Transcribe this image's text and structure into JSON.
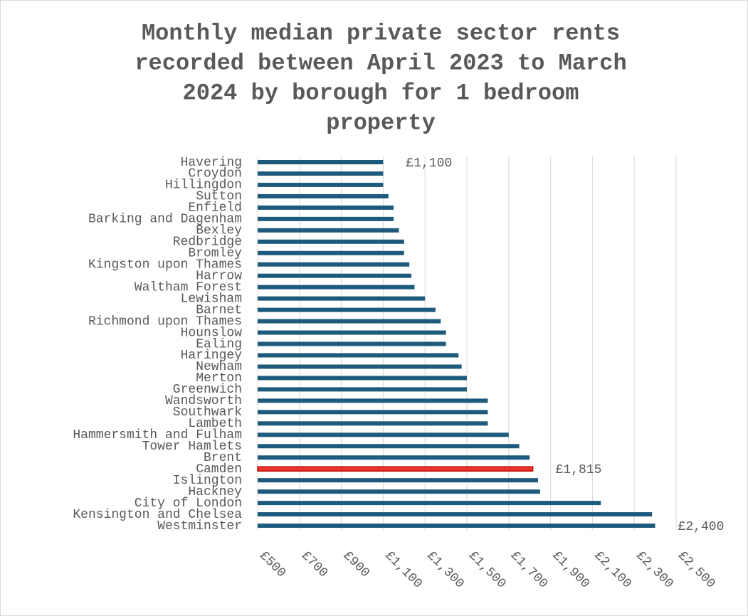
{
  "chart_data": {
    "type": "hbar",
    "title": [
      "Monthly median private sector rents",
      "recorded between April 2023 to March",
      "2024 by borough for 1 bedroom",
      "property"
    ],
    "categories": [
      "Havering",
      "Croydon",
      "Hillingdon",
      "Sutton",
      "Enfield",
      "Barking and Dagenham",
      "Bexley",
      "Redbridge",
      "Bromley",
      "Kingston upon Thames",
      "Harrow",
      "Waltham Forest",
      "Lewisham",
      "Barnet",
      "Richmond upon Thames",
      "Hounslow",
      "Ealing",
      "Haringey",
      "Newham",
      "Merton",
      "Greenwich",
      "Wandsworth",
      "Southwark",
      "Lambeth",
      "Hammersmith and Fulham",
      "Tower Hamlets",
      "Brent",
      "Camden",
      "Islington",
      "Hackney",
      "City of London",
      "Kensington and Chelsea",
      "Westminster"
    ],
    "values": [
      1100,
      1100,
      1100,
      1125,
      1150,
      1150,
      1175,
      1200,
      1200,
      1225,
      1235,
      1250,
      1300,
      1350,
      1375,
      1400,
      1400,
      1460,
      1475,
      1500,
      1500,
      1600,
      1600,
      1600,
      1700,
      1750,
      1800,
      1815,
      1840,
      1850,
      2140,
      2385,
      2400
    ],
    "value_labels": [
      "£1,100",
      null,
      null,
      null,
      null,
      null,
      null,
      null,
      null,
      null,
      null,
      null,
      null,
      null,
      null,
      null,
      null,
      null,
      null,
      null,
      null,
      null,
      null,
      null,
      null,
      null,
      null,
      "£1,815",
      null,
      null,
      null,
      null,
      "£2,400"
    ],
    "colors": [
      "#1d5a7c",
      "#1d5a7c",
      "#1d5a7c",
      "#1d5a7c",
      "#1d5a7c",
      "#1d5a7c",
      "#1d5a7c",
      "#1d5a7c",
      "#1d5a7c",
      "#1d5a7c",
      "#1d5a7c",
      "#1d5a7c",
      "#1d5a7c",
      "#1d5a7c",
      "#1d5a7c",
      "#1d5a7c",
      "#1d5a7c",
      "#1d5a7c",
      "#1d5a7c",
      "#1d5a7c",
      "#1d5a7c",
      "#1d5a7c",
      "#1d5a7c",
      "#1d5a7c",
      "#1d5a7c",
      "#1d5a7c",
      "#1d5a7c",
      "#e8392c",
      "#1d5a7c",
      "#1d5a7c",
      "#1d5a7c",
      "#1d5a7c",
      "#1d5a7c"
    ],
    "xlim": [
      500,
      2500
    ],
    "xticks": [
      {
        "value": 500,
        "label": "£500"
      },
      {
        "value": 700,
        "label": "£700"
      },
      {
        "value": 900,
        "label": "£900"
      },
      {
        "value": 1100,
        "label": "£1,100"
      },
      {
        "value": 1300,
        "label": "£1,300"
      },
      {
        "value": 1500,
        "label": "£1,500"
      },
      {
        "value": 1700,
        "label": "£1,700"
      },
      {
        "value": 1900,
        "label": "£1,900"
      },
      {
        "value": 2100,
        "label": "£2,100"
      },
      {
        "value": 2300,
        "label": "£2,300"
      },
      {
        "value": 2500,
        "label": "£2,500"
      }
    ],
    "grid": true
  }
}
